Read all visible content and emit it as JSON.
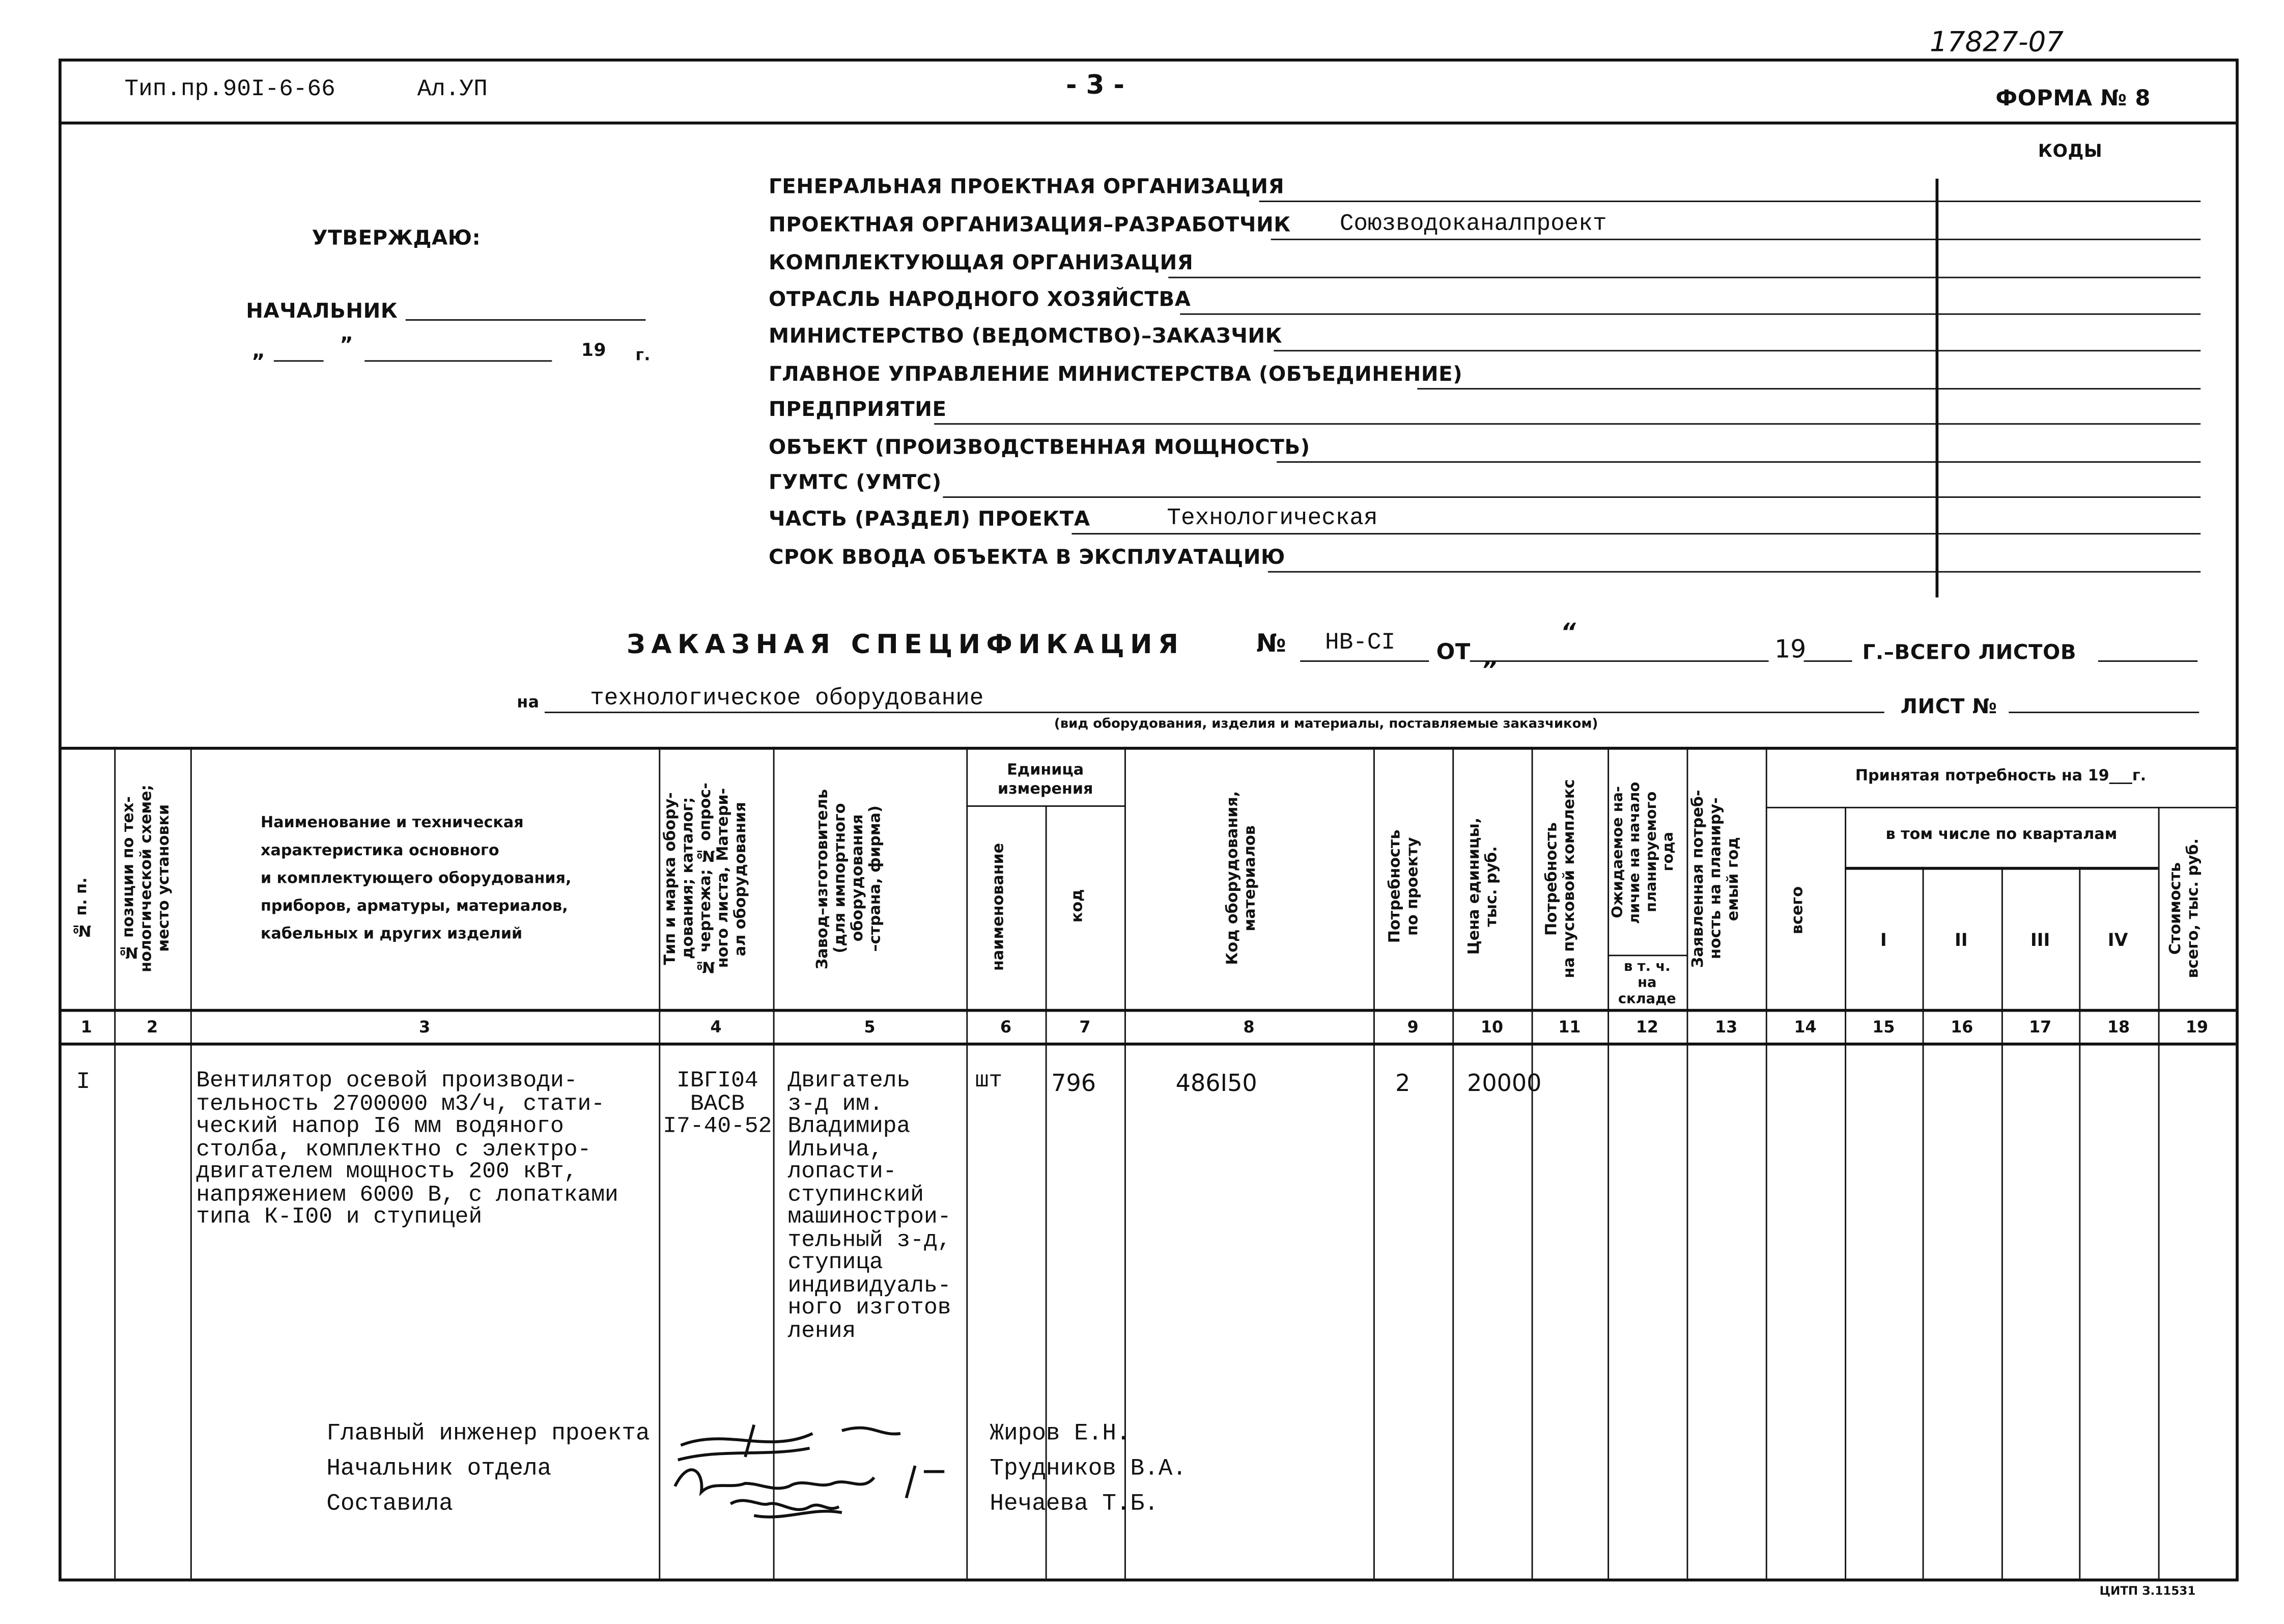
{
  "doc_number": "17827-07",
  "header": {
    "project": "Тип.пр.90I-6-66",
    "album": "Ал.УП",
    "page": "- 3 -",
    "form": "ФОРМА № 8"
  },
  "codes_label": "КОДЫ",
  "approval": {
    "approve": "УТВЕРЖДАЮ:",
    "chief": "НАЧАЛЬНИК",
    "date_open": "„",
    "date_close": "”",
    "year": "19",
    "year_suffix": "г."
  },
  "org_fields": [
    {
      "label": "ГЕНЕРАЛЬНАЯ ПРОЕКТНАЯ ОРГАНИЗАЦИЯ",
      "value": ""
    },
    {
      "label": "ПРОЕКТНАЯ ОРГАНИЗАЦИЯ–РАЗРАБОТЧИК",
      "value": "Союзводоканалпроект"
    },
    {
      "label": "КОМПЛЕКТУЮЩАЯ ОРГАНИЗАЦИЯ",
      "value": ""
    },
    {
      "label": "ОТРАСЛЬ НАРОДНОГО ХОЗЯЙСТВА",
      "value": ""
    },
    {
      "label": "МИНИСТЕРСТВО (ВЕДОМСТВО)–ЗАКАЗЧИК",
      "value": ""
    },
    {
      "label": "ГЛАВНОЕ УПРАВЛЕНИЕ МИНИСТЕРСТВА (ОБЪЕДИНЕНИЕ)",
      "value": ""
    },
    {
      "label": "ПРЕДПРИЯТИЕ",
      "value": ""
    },
    {
      "label": "ОБЪЕКТ (ПРОИЗВОДСТВЕННАЯ МОЩНОСТЬ)",
      "value": ""
    },
    {
      "label": "ГУМТС (УМТС)",
      "value": ""
    },
    {
      "label": "ЧАСТЬ (РАЗДЕЛ) ПРОЕКТА",
      "value": "Технологическая"
    },
    {
      "label": "СРОК ВВОДА ОБЪЕКТА В ЭКСПЛУАТАЦИЮ",
      "value": ""
    }
  ],
  "spec": {
    "title": "ЗАКАЗНАЯ СПЕЦИФИКАЦИЯ",
    "no_label": "№",
    "no": "НВ-СI",
    "from": "ОТ",
    "q1": "“",
    "q2": "”",
    "year": "19",
    "total_sheets": "Г.–ВСЕГО ЛИСТОВ",
    "on": "на",
    "subject": "технологическое оборудование",
    "sheet_no": "ЛИСТ №",
    "subject_note": "(вид оборудования, изделия и материалы, поставляемые заказчиком)"
  },
  "columns": {
    "c1": "№ п. п.",
    "c2": "№ позиции по тех-\nнологической схеме;\nместо установки",
    "c3": "Наименование и техническая\nхарактеристика основного\nи комплектующего оборудования,\nприборов, арматуры, материалов,\nкабельных и других изделий",
    "c4": "Тип и марка обору-\nдования; каталог;\n№ чертежа; № опрос-\nного листа, Матери-\nал оборудования",
    "c5": "Завод–изготовитель\n(для импортного\nоборудования\n–страна, фирма)",
    "unit": "Единица\nизмерения",
    "c6": "наименование",
    "c7": "код",
    "c8": "Код оборудования,\nматериалов",
    "c9": "Потребность\nпо проекту",
    "c10": "Цена единицы,\nтыс. руб.",
    "c11": "Потребность\nна пусковой комплекс",
    "c12": "Ожидаемое на-\nличие на начало\nпланируемого\nгода",
    "c12b": "в т. ч.\nна\nскладе",
    "c13": "Заявленная потреб-\nность на планиру-\nемый год",
    "accepted": "Принятая потребность на 19___г.",
    "c14": "всего",
    "quarters": "в том числе по кварталам",
    "q": [
      "I",
      "II",
      "III",
      "IV"
    ],
    "c19": "Стоимость\nвсего, тыс. руб.",
    "numbers": [
      "1",
      "2",
      "3",
      "4",
      "5",
      "6",
      "7",
      "8",
      "9",
      "10",
      "11",
      "12",
      "13",
      "14",
      "15",
      "16",
      "17",
      "18",
      "19"
    ]
  },
  "rows": [
    {
      "n": "I",
      "name": "Вентилятор осевой производи-\nтельность 2700000 м3/ч, стати-\nческий напор I6 мм водяного\nстолба, комплектно с электро-\nдвигателем мощность 200 кВт,\nнапряжением 6000 В, с лопатками\nтипа К-I00 и ступицей",
      "type": "IВГI04\nВАСВ\nI7-40-52",
      "maker": "Двигатель\nз-д им.\nВладимира\nИльича,\nлопасти-\nступинский\nмашинострои-\nтельный з-д,\nступица\nиндивидуаль-\nного изготов\nления",
      "unit": "шт",
      "unit_code": "796",
      "equip_code": "486I50",
      "qty": "2",
      "price": "20000"
    }
  ],
  "signatures": [
    {
      "role": "Главный инженер проекта",
      "name": "Жиров Е.Н."
    },
    {
      "role": "Начальник отдела",
      "name": "Трудников В.А."
    },
    {
      "role": "Составила",
      "name": "Нечаева Т.Б."
    }
  ],
  "footer": "ЦИТП З.11531"
}
